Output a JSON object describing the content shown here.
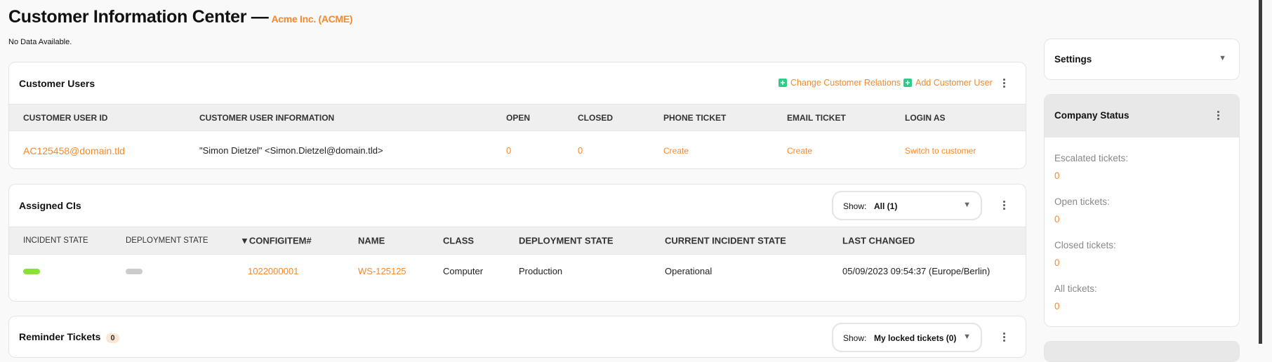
{
  "header": {
    "title": "Customer Information Center —",
    "company": "Acme Inc. (ACME)",
    "notice": "No Data Available."
  },
  "customer_users": {
    "title": "Customer Users",
    "actions": [
      "Change Customer Relations",
      "Add Customer User"
    ],
    "columns": [
      "CUSTOMER USER ID",
      "CUSTOMER USER INFORMATION",
      "OPEN",
      "CLOSED",
      "PHONE TICKET",
      "EMAIL TICKET",
      "LOGIN AS"
    ],
    "rows": [
      {
        "id": "AC125458@domain.tld",
        "info": "\"Simon Dietzel\" <Simon.Dietzel@domain.tld>",
        "open": "0",
        "closed": "0",
        "phone": "Create",
        "email": "Create",
        "login": "Switch to customer"
      }
    ]
  },
  "assigned_cis": {
    "title": "Assigned CIs",
    "show_label": "Show:",
    "show_value": "All (1)",
    "columns": [
      "INCIDENT STATE",
      "DEPLOYMENT STATE",
      "▼CONFIGITEM#",
      "NAME",
      "CLASS",
      "DEPLOYMENT STATE",
      "CURRENT INCIDENT STATE",
      "LAST CHANGED"
    ],
    "rows": [
      {
        "incident_color": "#8ae234",
        "deployment_color": "#cccccc",
        "configitem": "1022000001",
        "name": "WS-125125",
        "class": "Computer",
        "deployment": "Production",
        "incident": "Operational",
        "last_changed": "05/09/2023 09:54:37 (Europe/Berlin)"
      }
    ]
  },
  "reminder": {
    "title": "Reminder Tickets",
    "count": "0",
    "show_label": "Show:",
    "show_value": "My locked tickets (0)"
  },
  "settings": {
    "title": "Settings"
  },
  "company_status": {
    "title": "Company Status",
    "items": [
      {
        "label": "Escalated tickets:",
        "value": "0"
      },
      {
        "label": "Open tickets:",
        "value": "0"
      },
      {
        "label": "Closed tickets:",
        "value": "0"
      },
      {
        "label": "All tickets:",
        "value": "0"
      }
    ]
  },
  "colors": {
    "accent": "#f7892a",
    "add": "#2ecc8a"
  }
}
